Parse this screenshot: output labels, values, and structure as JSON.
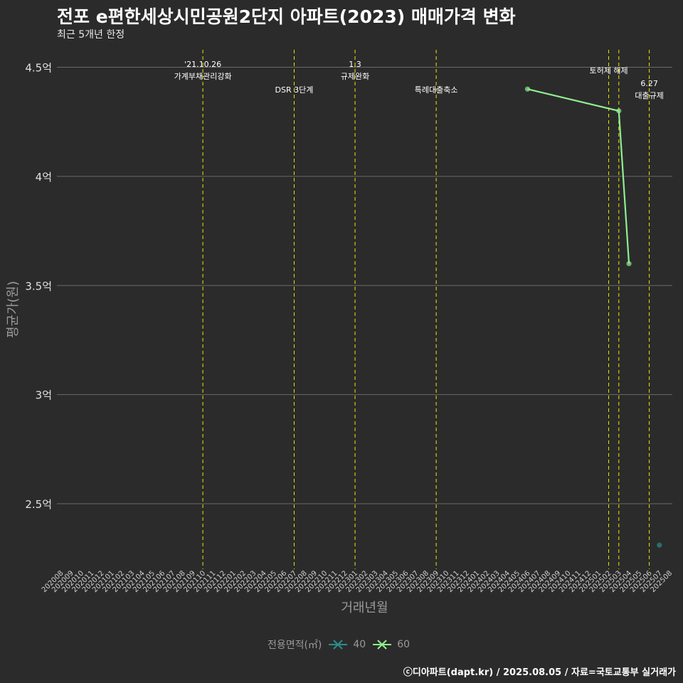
{
  "title": "전포 e편한세상시민공원2단지 아파트(2023) 매매가격 변화",
  "subtitle": "최근 5개년 한정",
  "caption": "ⓒ디아파트(dapt.kr) / 2025.08.05 / 자료=국토교통부 실거래가",
  "colors": {
    "background": "#2b2b2b",
    "grid": "#6a6a6a",
    "event_line": "#e8e800",
    "series_40": "#2e8b8b",
    "series_60": "#90ee90"
  },
  "chart_data": {
    "type": "line",
    "title": "전포 e편한세상시민공원2단지 아파트(2023) 매매가격 변화",
    "subtitle": "최근 5개년 한정",
    "xlabel": "거래년월",
    "ylabel": "평균가(원)",
    "ylim": [
      2.2,
      4.58
    ],
    "yticks": [
      2.5,
      3,
      3.5,
      4,
      4.5
    ],
    "ytick_labels": [
      "2.5억",
      "3억",
      "3.5억",
      "4억",
      "4.5억"
    ],
    "categories": [
      "202008",
      "202009",
      "202010",
      "202011",
      "202012",
      "202101",
      "202102",
      "202103",
      "202104",
      "202105",
      "202106",
      "202107",
      "202108",
      "202109",
      "202110",
      "202111",
      "202112",
      "202201",
      "202202",
      "202203",
      "202204",
      "202205",
      "202206",
      "202207",
      "202208",
      "202209",
      "202210",
      "202211",
      "202212",
      "202301",
      "202302",
      "202303",
      "202304",
      "202305",
      "202306",
      "202307",
      "202308",
      "202309",
      "202310",
      "202311",
      "202312",
      "202401",
      "202402",
      "202403",
      "202404",
      "202405",
      "202406",
      "202407",
      "202408",
      "202409",
      "202410",
      "202411",
      "202412",
      "202501",
      "202502",
      "202503",
      "202504",
      "202505",
      "202506",
      "202507",
      "202508"
    ],
    "series": [
      {
        "name": "40",
        "points": [
          {
            "x": "202507",
            "y": 2.31
          }
        ]
      },
      {
        "name": "60",
        "points": [
          {
            "x": "202406",
            "y": 4.4
          },
          {
            "x": "202503",
            "y": 4.3
          },
          {
            "x": "202504",
            "y": 3.6
          }
        ]
      }
    ],
    "events": [
      {
        "x": "202110",
        "lines": [
          "'21.10.26",
          "가계부채관리강화"
        ],
        "level": "high"
      },
      {
        "x": "202207",
        "lines": [
          "DSR 3단계"
        ],
        "level": "low"
      },
      {
        "x": "202301",
        "lines": [
          "1.3",
          "규제완화"
        ],
        "level": "high"
      },
      {
        "x": "202309",
        "lines": [
          "특례대출축소"
        ],
        "level": "low"
      },
      {
        "x": "202502",
        "lines": [
          "토허제 해제"
        ],
        "level": "mid"
      },
      {
        "x": "202503",
        "lines": [],
        "level": "none"
      },
      {
        "x": "202506",
        "lines": [
          "6.27",
          "대출규제"
        ],
        "level": "low"
      }
    ],
    "legend": {
      "title": "전용면적(㎡)",
      "entries": [
        "40",
        "60"
      ],
      "position": "bottom"
    },
    "grid": true
  }
}
